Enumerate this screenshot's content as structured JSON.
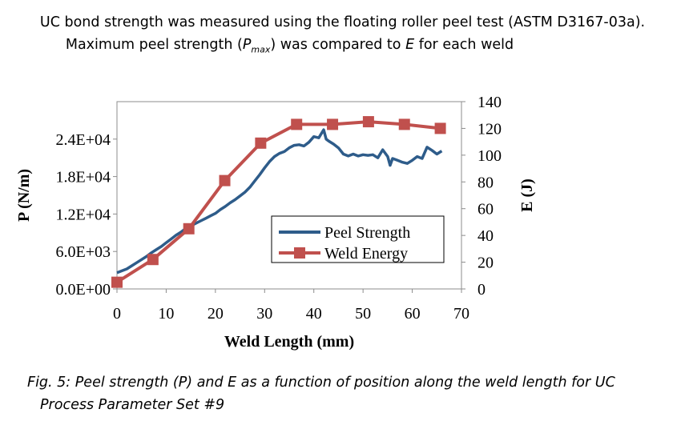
{
  "intro": {
    "line1": "UC bond strength was measured using the floating roller peel test (ASTM D3167-03a).",
    "line2_pre": "Maximum peel strength (",
    "line2_sym": "P",
    "line2_sub": "max",
    "line2_mid": ") was compared to ",
    "line2_e": "E",
    "line2_post": " for each weld"
  },
  "caption": {
    "line1": "Fig. 5: Peel strength (P) and E as a function of position along the weld length for UC",
    "line2": "Process Parameter Set #9"
  },
  "chart_data": {
    "type": "line",
    "xlabel": "Weld Length (mm)",
    "ylabel": "P (N/m)",
    "y2label": "E (J)",
    "xlim": [
      0,
      70
    ],
    "xticks": [
      "0",
      "10",
      "20",
      "30",
      "40",
      "50",
      "60",
      "70"
    ],
    "ylim": [
      0,
      30000
    ],
    "yticks": [
      "0.0E+00",
      "6.0E+03",
      "1.2E+04",
      "1.8E+04",
      "2.4E+04"
    ],
    "y2lim": [
      0,
      140
    ],
    "y2ticks": [
      "0",
      "20",
      "40",
      "60",
      "80",
      "100",
      "120",
      "140"
    ],
    "legend_position": "bottom-right",
    "colors": {
      "peel": "#2e5c8a",
      "energy": "#c0504d"
    },
    "series": [
      {
        "name": "Peel Strength",
        "axis": "left",
        "x": [
          0,
          1,
          2,
          3,
          4,
          5,
          6,
          7,
          8,
          9,
          10,
          11,
          12,
          13,
          14,
          15,
          16,
          17,
          18,
          19,
          20,
          21,
          22,
          23,
          24,
          25,
          26,
          27,
          28,
          29,
          30,
          31,
          32,
          33,
          34,
          35,
          36,
          37,
          38,
          39,
          40,
          41,
          42,
          42.5,
          43,
          44,
          45,
          46,
          47,
          48,
          49,
          50,
          51,
          52,
          53,
          54,
          55,
          55.5,
          56,
          57,
          58,
          59,
          60,
          61,
          62,
          63,
          64,
          65,
          66
        ],
        "y": [
          2600,
          2900,
          3200,
          3700,
          4200,
          4700,
          5200,
          5800,
          6300,
          6800,
          7400,
          8000,
          8600,
          9100,
          9700,
          10100,
          10500,
          10900,
          11300,
          11700,
          12100,
          12700,
          13200,
          13800,
          14300,
          14900,
          15500,
          16300,
          17300,
          18300,
          19400,
          20400,
          21200,
          21700,
          22000,
          22600,
          23000,
          23100,
          22900,
          23500,
          24400,
          24200,
          25500,
          24000,
          23700,
          23200,
          22600,
          21600,
          21300,
          21600,
          21300,
          21500,
          21400,
          21500,
          21000,
          22300,
          21200,
          19800,
          20900,
          20600,
          20300,
          20100,
          20600,
          21200,
          20900,
          22700,
          22200,
          21600,
          22100
        ]
      },
      {
        "name": "Weld Energy",
        "axis": "right",
        "x": [
          0,
          7.3,
          14.6,
          21.9,
          29.2,
          36.5,
          43.8,
          51.1,
          58.4,
          65.7
        ],
        "y": [
          5,
          22,
          45,
          81,
          109,
          123,
          123,
          125,
          123,
          120
        ]
      }
    ]
  }
}
